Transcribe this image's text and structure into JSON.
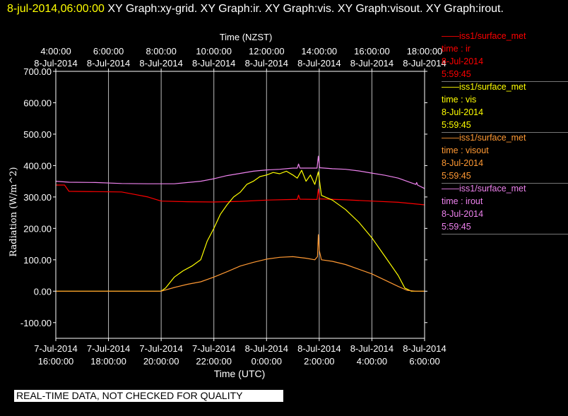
{
  "header": {
    "timestamp": "8-jul-2014,06:00:00",
    "graphs": "XY Graph:xy-grid.  XY Graph:ir.  XY Graph:vis.  XY Graph:visout.  XY Graph:irout."
  },
  "banner": "REAL-TIME DATA, NOT CHECKED FOR QUALITY",
  "legend": [
    {
      "line": "iss1/surface_met",
      "var": "time : ir",
      "date": "8-Jul-2014",
      "time": "5:59:45",
      "color": "#ff0000"
    },
    {
      "line": "iss1/surface_met",
      "var": "time : vis",
      "date": "8-Jul-2014",
      "time": "5:59:45",
      "color": "#ffff00"
    },
    {
      "line": "iss1/surface_met",
      "var": "time : visout",
      "date": "8-Jul-2014",
      "time": "5:59:45",
      "color": "#ff9933"
    },
    {
      "line": "iss1/surface_met",
      "var": "time : irout",
      "date": "8-Jul-2014",
      "time": "5:59:45",
      "color": "#ee82ee"
    }
  ],
  "chart_data": {
    "type": "line",
    "title": "",
    "xlabel": "Time (UTC)",
    "x2label": "Time (NZST)",
    "ylabel": "Radiation (W/m^2)",
    "xlim": [
      "2014-07-07T16:00",
      "2014-07-08T06:00"
    ],
    "ylim": [
      -150,
      700
    ],
    "grid": {
      "vertical": true,
      "horizontal": false
    },
    "yticks": [
      -100,
      0,
      100,
      200,
      300,
      400,
      500,
      600,
      700
    ],
    "ytick_labels": [
      "-100.00",
      "0.00",
      "100.00",
      "200.00",
      "300.00",
      "400.00",
      "500.00",
      "600.00",
      "700.00"
    ],
    "xticks_bottom": [
      {
        "t": "2014-07-07T16:00",
        "line1": "7-Jul-2014",
        "line2": "16:00:00"
      },
      {
        "t": "2014-07-07T18:00",
        "line1": "7-Jul-2014",
        "line2": "18:00:00"
      },
      {
        "t": "2014-07-07T20:00",
        "line1": "7-Jul-2014",
        "line2": "20:00:00"
      },
      {
        "t": "2014-07-07T22:00",
        "line1": "7-Jul-2014",
        "line2": "22:00:00"
      },
      {
        "t": "2014-07-08T00:00",
        "line1": "8-Jul-2014",
        "line2": "0:00:00"
      },
      {
        "t": "2014-07-08T02:00",
        "line1": "8-Jul-2014",
        "line2": "2:00:00"
      },
      {
        "t": "2014-07-08T04:00",
        "line1": "8-Jul-2014",
        "line2": "4:00:00"
      },
      {
        "t": "2014-07-08T06:00",
        "line1": "8-Jul-2014",
        "line2": "6:00:00"
      }
    ],
    "xticks_top": [
      {
        "t": "2014-07-07T16:00",
        "line1": "4:00:00",
        "line2": "8-Jul-2014"
      },
      {
        "t": "2014-07-07T18:00",
        "line1": "6:00:00",
        "line2": "8-Jul-2014"
      },
      {
        "t": "2014-07-07T20:00",
        "line1": "8:00:00",
        "line2": "8-Jul-2014"
      },
      {
        "t": "2014-07-07T22:00",
        "line1": "10:00:00",
        "line2": "8-Jul-2014"
      },
      {
        "t": "2014-07-08T00:00",
        "line1": "12:00:00",
        "line2": "8-Jul-2014"
      },
      {
        "t": "2014-07-08T02:00",
        "line1": "14:00:00",
        "line2": "8-Jul-2014"
      },
      {
        "t": "2014-07-08T04:00",
        "line1": "16:00:00",
        "line2": "8-Jul-2014"
      },
      {
        "t": "2014-07-08T06:00",
        "line1": "18:00:00",
        "line2": "8-Jul-2014"
      }
    ],
    "series": [
      {
        "key": "irout",
        "color": "#ee82ee",
        "points": [
          [
            "2014-07-07T16:00",
            350
          ],
          [
            "2014-07-07T16:30",
            347
          ],
          [
            "2014-07-07T17:30",
            346
          ],
          [
            "2014-07-07T18:30",
            343
          ],
          [
            "2014-07-07T19:30",
            342
          ],
          [
            "2014-07-07T20:30",
            342
          ],
          [
            "2014-07-07T21:30",
            350
          ],
          [
            "2014-07-07T22:00",
            358
          ],
          [
            "2014-07-07T22:30",
            368
          ],
          [
            "2014-07-07T23:00",
            375
          ],
          [
            "2014-07-07T23:30",
            382
          ],
          [
            "2014-07-08T00:00",
            386
          ],
          [
            "2014-07-08T00:30",
            388
          ],
          [
            "2014-07-08T01:00",
            392
          ],
          [
            "2014-07-08T01:10",
            392
          ],
          [
            "2014-07-08T01:13",
            405
          ],
          [
            "2014-07-08T01:16",
            392
          ],
          [
            "2014-07-08T01:30",
            392
          ],
          [
            "2014-07-08T01:55",
            392
          ],
          [
            "2014-07-08T01:58",
            430
          ],
          [
            "2014-07-08T02:01",
            393
          ],
          [
            "2014-07-08T02:30",
            390
          ],
          [
            "2014-07-08T03:00",
            388
          ],
          [
            "2014-07-08T03:30",
            383
          ],
          [
            "2014-07-08T04:00",
            376
          ],
          [
            "2014-07-08T04:30",
            369
          ],
          [
            "2014-07-08T05:00",
            360
          ],
          [
            "2014-07-08T05:30",
            345
          ],
          [
            "2014-07-08T05:40",
            340
          ],
          [
            "2014-07-08T05:42",
            346
          ],
          [
            "2014-07-08T05:44",
            338
          ],
          [
            "2014-07-08T06:00",
            327
          ]
        ]
      },
      {
        "key": "ir",
        "color": "#ff0000",
        "points": [
          [
            "2014-07-07T16:00",
            338
          ],
          [
            "2014-07-07T16:20",
            338
          ],
          [
            "2014-07-07T16:30",
            318
          ],
          [
            "2014-07-07T17:30",
            317
          ],
          [
            "2014-07-07T18:30",
            316
          ],
          [
            "2014-07-07T19:00",
            308
          ],
          [
            "2014-07-07T19:30",
            300
          ],
          [
            "2014-07-07T20:00",
            287
          ],
          [
            "2014-07-07T21:00",
            285
          ],
          [
            "2014-07-07T22:00",
            284
          ],
          [
            "2014-07-07T23:00",
            286
          ],
          [
            "2014-07-08T00:00",
            290
          ],
          [
            "2014-07-08T01:00",
            292
          ],
          [
            "2014-07-08T01:10",
            292
          ],
          [
            "2014-07-08T01:13",
            306
          ],
          [
            "2014-07-08T01:16",
            293
          ],
          [
            "2014-07-08T01:55",
            292
          ],
          [
            "2014-07-08T01:58",
            325
          ],
          [
            "2014-07-08T02:01",
            294
          ],
          [
            "2014-07-08T03:00",
            291
          ],
          [
            "2014-07-08T04:00",
            287
          ],
          [
            "2014-07-08T05:00",
            283
          ],
          [
            "2014-07-08T06:00",
            275
          ]
        ]
      },
      {
        "key": "vis",
        "color": "#ffff00",
        "points": [
          [
            "2014-07-07T16:00",
            0
          ],
          [
            "2014-07-07T17:00",
            0
          ],
          [
            "2014-07-07T18:00",
            0
          ],
          [
            "2014-07-07T19:00",
            0
          ],
          [
            "2014-07-07T20:00",
            0
          ],
          [
            "2014-07-07T20:10",
            10
          ],
          [
            "2014-07-07T20:30",
            45
          ],
          [
            "2014-07-07T20:50",
            65
          ],
          [
            "2014-07-07T21:10",
            80
          ],
          [
            "2014-07-07T21:30",
            100
          ],
          [
            "2014-07-07T21:45",
            160
          ],
          [
            "2014-07-07T22:00",
            200
          ],
          [
            "2014-07-07T22:15",
            245
          ],
          [
            "2014-07-07T22:30",
            275
          ],
          [
            "2014-07-07T22:45",
            300
          ],
          [
            "2014-07-07T23:00",
            315
          ],
          [
            "2014-07-07T23:15",
            340
          ],
          [
            "2014-07-07T23:30",
            350
          ],
          [
            "2014-07-07T23:45",
            365
          ],
          [
            "2014-07-08T00:00",
            370
          ],
          [
            "2014-07-08T00:15",
            378
          ],
          [
            "2014-07-08T00:30",
            374
          ],
          [
            "2014-07-08T00:45",
            382
          ],
          [
            "2014-07-08T01:00",
            370
          ],
          [
            "2014-07-08T01:10",
            360
          ],
          [
            "2014-07-08T01:20",
            385
          ],
          [
            "2014-07-08T01:30",
            350
          ],
          [
            "2014-07-08T01:40",
            370
          ],
          [
            "2014-07-08T01:50",
            340
          ],
          [
            "2014-07-08T01:58",
            380
          ],
          [
            "2014-07-08T02:05",
            305
          ],
          [
            "2014-07-08T02:30",
            290
          ],
          [
            "2014-07-08T03:00",
            260
          ],
          [
            "2014-07-08T03:30",
            220
          ],
          [
            "2014-07-08T04:00",
            170
          ],
          [
            "2014-07-08T04:30",
            110
          ],
          [
            "2014-07-08T05:00",
            50
          ],
          [
            "2014-07-08T05:15",
            10
          ],
          [
            "2014-07-08T05:30",
            0
          ],
          [
            "2014-07-08T06:00",
            0
          ]
        ]
      },
      {
        "key": "visout",
        "color": "#ff9933",
        "points": [
          [
            "2014-07-07T16:00",
            0
          ],
          [
            "2014-07-07T17:00",
            0
          ],
          [
            "2014-07-07T18:00",
            0
          ],
          [
            "2014-07-07T19:00",
            0
          ],
          [
            "2014-07-07T20:00",
            0
          ],
          [
            "2014-07-07T20:30",
            12
          ],
          [
            "2014-07-07T21:00",
            22
          ],
          [
            "2014-07-07T21:30",
            30
          ],
          [
            "2014-07-07T22:00",
            45
          ],
          [
            "2014-07-07T22:30",
            62
          ],
          [
            "2014-07-07T23:00",
            80
          ],
          [
            "2014-07-07T23:30",
            92
          ],
          [
            "2014-07-08T00:00",
            102
          ],
          [
            "2014-07-08T00:30",
            108
          ],
          [
            "2014-07-08T01:00",
            110
          ],
          [
            "2014-07-08T01:30",
            105
          ],
          [
            "2014-07-08T01:50",
            100
          ],
          [
            "2014-07-08T01:56",
            110
          ],
          [
            "2014-07-08T01:58",
            180
          ],
          [
            "2014-07-08T02:00",
            130
          ],
          [
            "2014-07-08T02:05",
            100
          ],
          [
            "2014-07-08T02:30",
            95
          ],
          [
            "2014-07-08T03:00",
            85
          ],
          [
            "2014-07-08T03:30",
            70
          ],
          [
            "2014-07-08T04:00",
            55
          ],
          [
            "2014-07-08T04:30",
            35
          ],
          [
            "2014-07-08T05:00",
            15
          ],
          [
            "2014-07-08T05:20",
            3
          ],
          [
            "2014-07-08T05:40",
            0
          ],
          [
            "2014-07-08T06:00",
            0
          ]
        ]
      }
    ]
  }
}
